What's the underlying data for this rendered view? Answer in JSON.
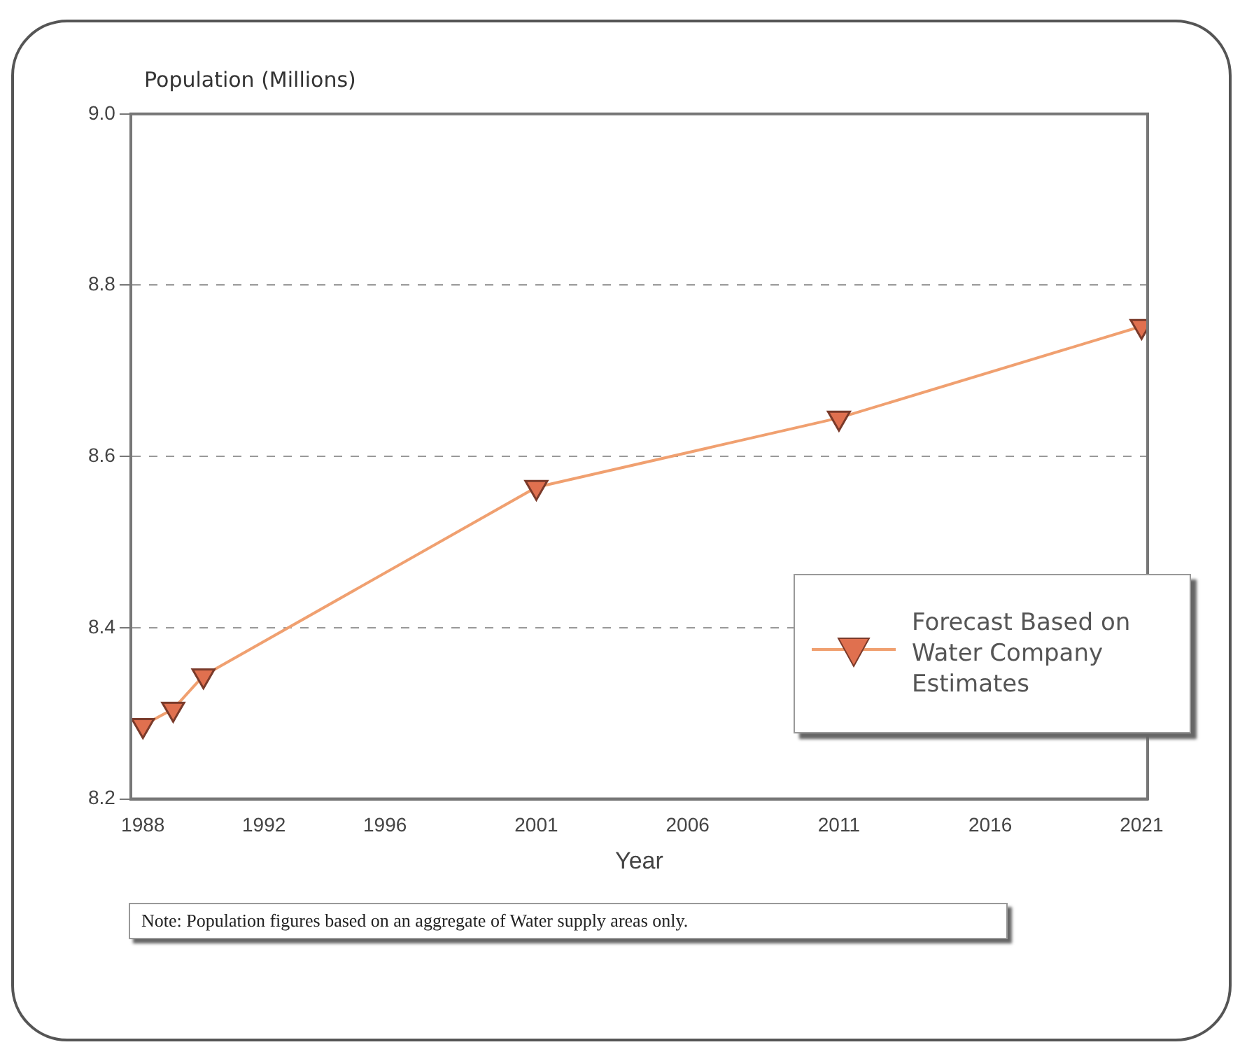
{
  "chart_data": {
    "type": "line",
    "ylabel": "Population (Millions)",
    "xlabel": "Year",
    "x": [
      1988,
      1989,
      1990,
      2001,
      2011,
      2021
    ],
    "series": [
      {
        "name": "Forecast Based on Water Company Estimates",
        "color": "#f0a070",
        "values": [
          8.286,
          8.305,
          8.344,
          8.564,
          8.645,
          8.752
        ]
      }
    ],
    "xlim": [
      1987.6,
      2021.2
    ],
    "xticks": [
      1988,
      1992,
      1996,
      2001,
      2006,
      2011,
      2016,
      2021
    ],
    "ylim": [
      8.2,
      9.0
    ],
    "yticks": [
      {
        "value": 8.2,
        "label": "8.2"
      },
      {
        "value": 8.4,
        "label": "8.4"
      },
      {
        "value": 8.6,
        "label": "8.6"
      },
      {
        "value": 8.8,
        "label": "8.8"
      },
      {
        "value": 9,
        "label": "9.0"
      }
    ],
    "grid": "y",
    "legend": "right",
    "marker": "triangle",
    "line_style": "solid",
    "annotations": [
      "Note:  Population figures based on an aggregate of Water supply areas only."
    ]
  }
}
